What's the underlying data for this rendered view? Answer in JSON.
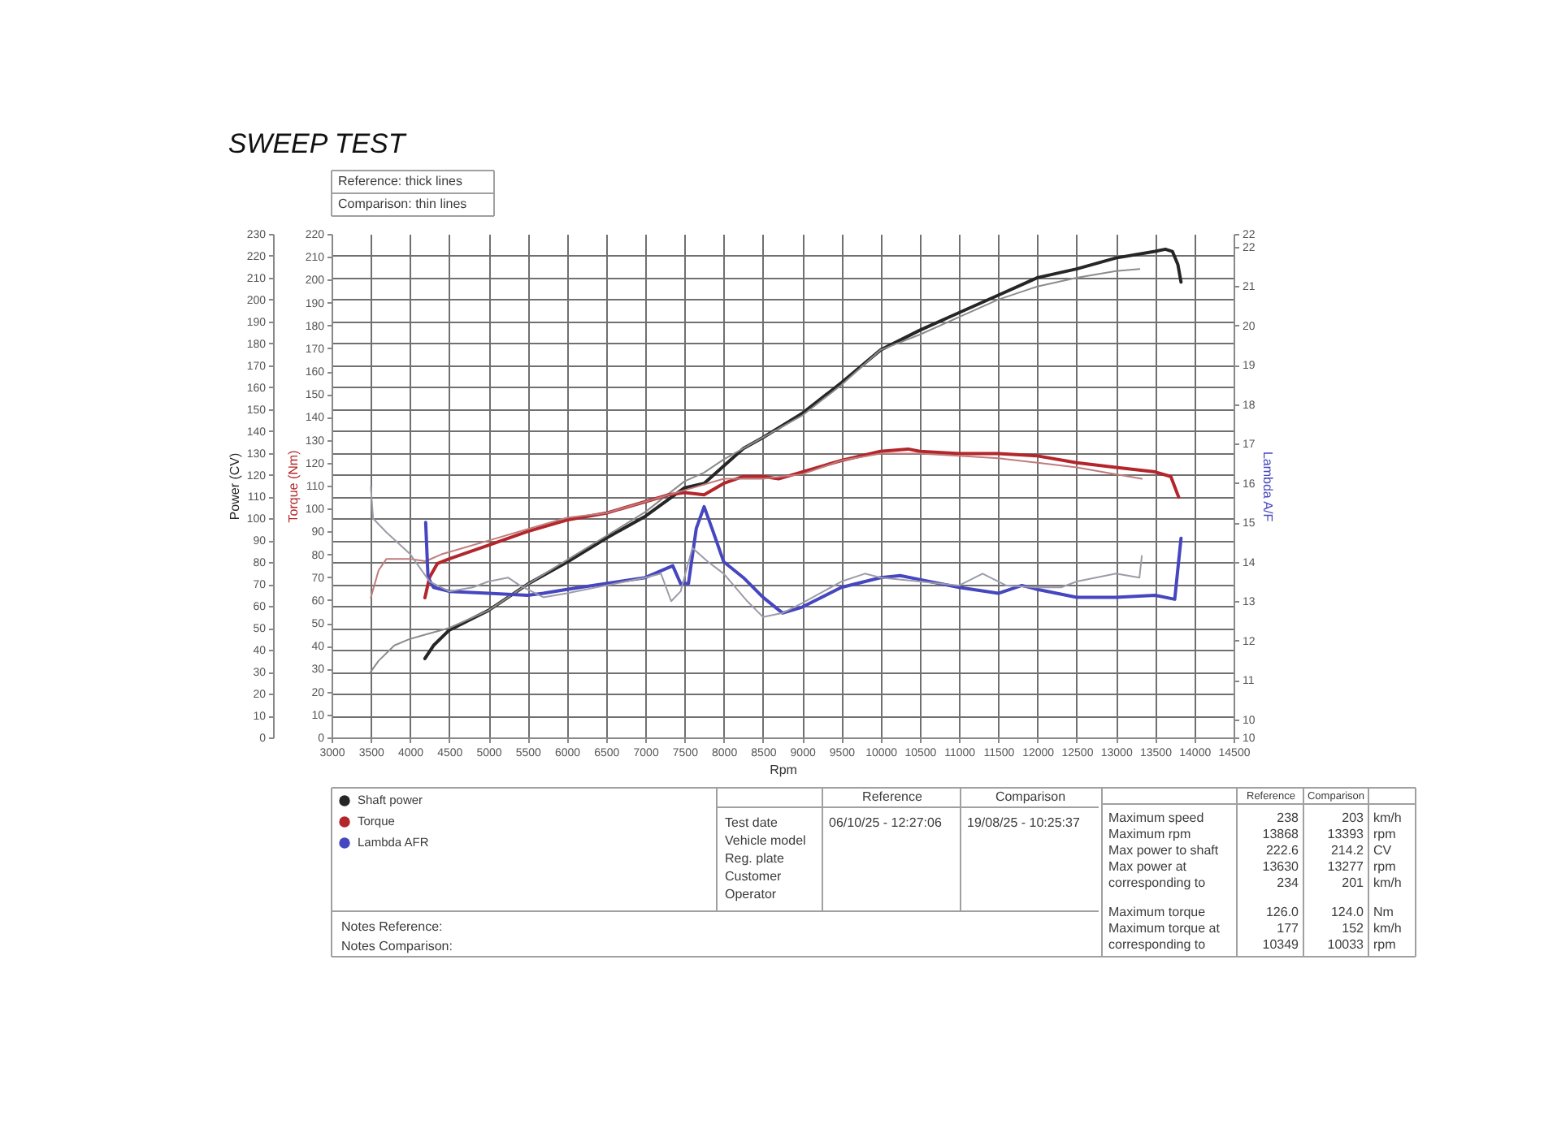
{
  "chart_data": {
    "type": "line",
    "title": "SWEEP TEST",
    "xlabel": "Rpm",
    "ylabel": "Power (CV)",
    "y2label": "Torque (Nm)",
    "y3label": "Lambda A/F",
    "xlim": [
      3000,
      14500
    ],
    "xticks": [
      3000,
      3500,
      4000,
      4500,
      5000,
      5500,
      6000,
      6500,
      7000,
      7500,
      8000,
      8500,
      9000,
      9500,
      10000,
      10500,
      11000,
      11500,
      12000,
      12500,
      13000,
      13500,
      14000,
      14500
    ],
    "ylim": [
      0,
      230
    ],
    "yticks": [
      0,
      10,
      20,
      30,
      40,
      50,
      60,
      70,
      80,
      90,
      100,
      110,
      120,
      130,
      140,
      150,
      160,
      170,
      180,
      190,
      200,
      210,
      220,
      230
    ],
    "y2lim": [
      0,
      220
    ],
    "y2ticks": [
      0,
      10,
      20,
      30,
      40,
      50,
      60,
      70,
      80,
      90,
      100,
      110,
      120,
      130,
      140,
      150,
      160,
      170,
      180,
      190,
      200,
      210,
      220
    ],
    "y3lim": [
      9.54,
      22.33
    ],
    "y3ticks": [
      {
        "value": 9.54,
        "label": "10"
      },
      10,
      11,
      12,
      13,
      14,
      15,
      16,
      17,
      18,
      19,
      20,
      21,
      22,
      {
        "value": 22.33,
        "label": "22"
      }
    ],
    "grid": true,
    "legend": "bottom left",
    "series": [
      {
        "name": "Shaft power",
        "color": "#262626",
        "x": [
          4190,
          4300,
          4500,
          5000,
          5500,
          6000,
          6500,
          7000,
          7500,
          7750,
          8000,
          8250,
          8500,
          9000,
          9500,
          10000,
          10500,
          11000,
          11500,
          12000,
          12500,
          13000,
          13500,
          13630,
          13720,
          13790,
          13830
        ],
        "values": [
          36,
          42,
          49,
          58,
          70,
          80,
          91,
          101,
          114,
          116,
          124,
          132,
          137,
          148,
          162,
          177,
          186,
          194,
          202,
          210,
          214,
          219,
          222,
          223,
          222,
          216,
          208
        ]
      },
      {
        "color": "#8c8c8c",
        "x": [
          3500,
          3600,
          3800,
          4000,
          4200,
          4500,
          5000,
          5500,
          6000,
          6500,
          7000,
          7500,
          7750,
          8000,
          8500,
          9000,
          9500,
          10000,
          10500,
          11000,
          11500,
          12000,
          12500,
          13000,
          13300
        ],
        "values": [
          30,
          35,
          42,
          45,
          47,
          50,
          58,
          70,
          81,
          92,
          103,
          117,
          121,
          127,
          137,
          147,
          161,
          177,
          184,
          192,
          200,
          206,
          210,
          213,
          214
        ]
      },
      {
        "name": "Torque",
        "color": "#b3262b",
        "axis": "y2",
        "x": [
          4190,
          4250,
          4350,
          4500,
          5000,
          5500,
          6000,
          6500,
          7000,
          7300,
          7500,
          7750,
          8000,
          8250,
          8500,
          8700,
          9000,
          9500,
          10000,
          10350,
          10500,
          11000,
          11500,
          12000,
          12500,
          13000,
          13500,
          13700,
          13800
        ],
        "values": [
          61,
          70,
          76,
          78,
          84,
          90,
          95,
          98,
          103,
          106,
          107,
          106,
          111,
          114,
          114,
          113,
          116,
          121,
          125,
          126,
          125,
          124,
          124,
          123,
          120,
          118,
          116,
          114,
          105
        ]
      },
      {
        "color": "#c07c7c",
        "axis": "y2",
        "x": [
          3500,
          3600,
          3700,
          3850,
          4000,
          4200,
          4400,
          4500,
          5000,
          5500,
          6000,
          6500,
          7000,
          7500,
          8000,
          8500,
          9000,
          9500,
          10000,
          10500,
          11000,
          11500,
          12000,
          12500,
          13000,
          13330
        ],
        "values": [
          61,
          73,
          78,
          78,
          78,
          77,
          80,
          81,
          86,
          91,
          96,
          98,
          103,
          108,
          113,
          113,
          115,
          121,
          124,
          124,
          123,
          122,
          120,
          118,
          115,
          113
        ]
      },
      {
        "name": "Lambda AFR",
        "color": "#4646c0",
        "axis": "y3",
        "x": [
          4200,
          4230,
          4300,
          4500,
          5000,
          5500,
          5700,
          6000,
          6500,
          7000,
          7350,
          7450,
          7550,
          7650,
          7750,
          7850,
          8000,
          8250,
          8500,
          8750,
          9000,
          9500,
          10000,
          10250,
          10500,
          11000,
          11500,
          11800,
          12000,
          12500,
          13000,
          13500,
          13750,
          13830
        ],
        "values": [
          15.0,
          13.6,
          13.35,
          13.25,
          13.2,
          13.15,
          13.2,
          13.3,
          13.45,
          13.6,
          13.9,
          13.45,
          13.45,
          14.85,
          15.4,
          14.85,
          14.0,
          13.6,
          13.1,
          12.7,
          12.85,
          13.35,
          13.6,
          13.65,
          13.55,
          13.35,
          13.2,
          13.4,
          13.3,
          13.1,
          13.1,
          13.15,
          13.05,
          14.6
        ]
      },
      {
        "color": "#9c9caa",
        "axis": "y3",
        "x": [
          3500,
          3530,
          3700,
          4000,
          4250,
          4500,
          4800,
          5000,
          5250,
          5400,
          5700,
          6000,
          6500,
          7000,
          7200,
          7330,
          7450,
          7600,
          7800,
          8000,
          8300,
          8500,
          8750,
          9000,
          9500,
          9800,
          10000,
          10500,
          11000,
          11300,
          11600,
          12000,
          12300,
          12500,
          13000,
          13300,
          13330
        ],
        "values": [
          15.9,
          15.1,
          14.75,
          14.2,
          13.5,
          13.25,
          13.35,
          13.5,
          13.6,
          13.4,
          13.1,
          13.2,
          13.4,
          13.6,
          13.7,
          13.0,
          13.25,
          14.35,
          14.0,
          13.7,
          13.0,
          12.6,
          12.7,
          12.95,
          13.5,
          13.7,
          13.6,
          13.5,
          13.4,
          13.7,
          13.4,
          13.35,
          13.35,
          13.5,
          13.7,
          13.6,
          14.15
        ]
      }
    ],
    "annotations": [
      "Reference: thick lines",
      "Comparison: thin lines",
      "Notes Reference:",
      "Notes Comparison:",
      "Reference",
      "Comparison",
      "Test date",
      "Vehicle model",
      "Reg. plate",
      "Customer",
      "Operator",
      "06/10/25 - 12:27:06",
      "19/08/25 - 10:25:37",
      "Reference",
      "Comparison",
      "Maximum speed",
      "238",
      "203",
      "km/h",
      "Maximum rpm",
      "13868",
      "13393",
      "rpm",
      "Max power to shaft",
      "222.6",
      "214.2",
      "CV",
      "Max power at",
      "13630",
      "13277",
      "rpm",
      "corresponding to",
      "234",
      "201",
      "km/h",
      "Maximum torque",
      "126.0",
      "124.0",
      "Nm",
      "Maximum torque at",
      "177",
      "152",
      "km/h",
      "corresponding to",
      "10349",
      "10033",
      "rpm"
    ]
  }
}
